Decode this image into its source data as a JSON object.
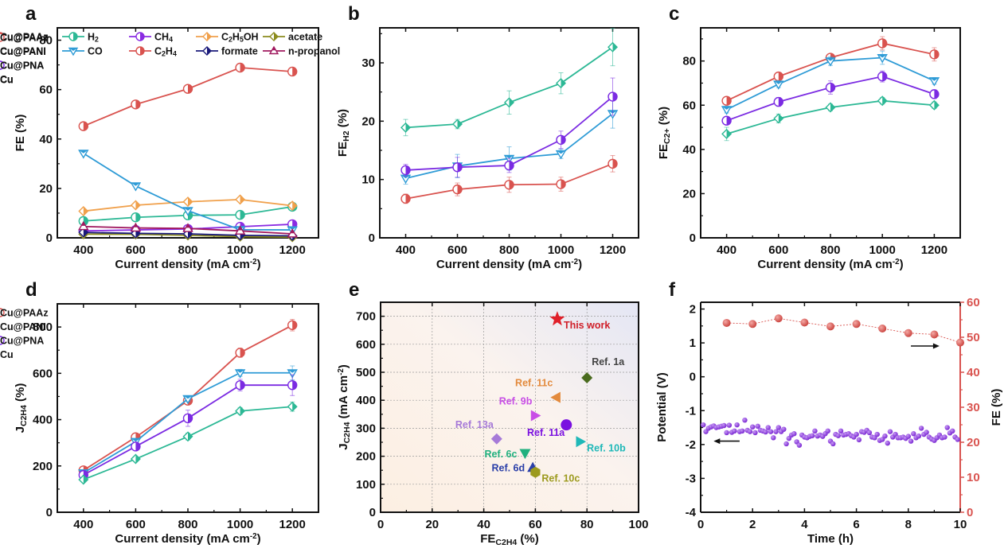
{
  "figure": {
    "panels": [
      "a",
      "b",
      "c",
      "d",
      "e",
      "f"
    ]
  },
  "chart_data": [
    {
      "panel": "a",
      "type": "line",
      "title": "",
      "xlabel": "Current density (mA cm⁻²)",
      "ylabel": "FE (%)",
      "x": [
        400,
        600,
        800,
        1000,
        1200
      ],
      "xlim": [
        300,
        1300
      ],
      "ylim": [
        0,
        85
      ],
      "xticks": [
        400,
        600,
        800,
        1000,
        1200
      ],
      "yticks": [
        0,
        20,
        40,
        60,
        80
      ],
      "legend": "top (2 rows, 4 columns)",
      "series": [
        {
          "name": "H₂",
          "color": "#2cb895",
          "values": [
            6.8,
            8.3,
            9.1,
            9.3,
            12.6
          ]
        },
        {
          "name": "CH₄",
          "color": "#8a2be2",
          "values": [
            2.8,
            3.2,
            3.6,
            4.5,
            5.5
          ]
        },
        {
          "name": "C₂H₅OH",
          "color": "#f0a04b",
          "values": [
            10.8,
            13.2,
            14.6,
            15.5,
            13.0
          ]
        },
        {
          "name": "acetate",
          "color": "#8c8c1e",
          "values": [
            1.5,
            1.4,
            1.0,
            0.5,
            0.3
          ]
        },
        {
          "name": "CO",
          "color": "#2e9bd6",
          "values": [
            34.2,
            21.0,
            11.0,
            3.3,
            3.2
          ]
        },
        {
          "name": "C₂H₄",
          "color": "#d9534f",
          "values": [
            45.2,
            54.0,
            60.3,
            68.9,
            67.3
          ]
        },
        {
          "name": "formate",
          "color": "#1a1a7a",
          "values": [
            2.2,
            1.8,
            1.6,
            1.0,
            0.8
          ]
        },
        {
          "name": "n-propanol",
          "color": "#a0195f",
          "values": [
            4.6,
            4.0,
            3.8,
            2.8,
            1.6
          ]
        }
      ]
    },
    {
      "panel": "b",
      "type": "line",
      "xlabel": "Current density (mA cm⁻²)",
      "ylabel": "FE H₂ (%)",
      "x": [
        400,
        600,
        800,
        1000,
        1200
      ],
      "xlim": [
        300,
        1300
      ],
      "ylim": [
        0,
        36
      ],
      "xticks": [
        400,
        600,
        800,
        1000,
        1200
      ],
      "yticks": [
        0,
        10,
        20,
        30
      ],
      "legend": "top-left",
      "series": [
        {
          "name": "Cu@PAAz",
          "color": "#d9534f",
          "values": [
            6.7,
            8.3,
            9.1,
            9.2,
            12.7
          ],
          "errors": [
            0.8,
            1.1,
            1.3,
            1.2,
            1.4
          ]
        },
        {
          "name": "Cu@PANI",
          "color": "#2e9bd6",
          "values": [
            10.2,
            12.3,
            13.6,
            14.4,
            21.3
          ],
          "errors": [
            1.0,
            2.0,
            2.0,
            0.8,
            2.5
          ]
        },
        {
          "name": "Cu@PNA",
          "color": "#7b2be2",
          "values": [
            11.6,
            12.1,
            12.4,
            16.8,
            24.2
          ],
          "errors": [
            1.0,
            1.7,
            1.2,
            1.5,
            3.2
          ]
        },
        {
          "name": "Cu",
          "color": "#2cb895",
          "values": [
            18.9,
            19.5,
            23.2,
            26.5,
            32.7
          ],
          "errors": [
            1.4,
            0.8,
            2.0,
            1.8,
            3.2
          ]
        }
      ]
    },
    {
      "panel": "c",
      "type": "line",
      "xlabel": "Current density (mA cm⁻²)",
      "ylabel": "FE C2+ (%)",
      "x": [
        400,
        600,
        800,
        1000,
        1200
      ],
      "xlim": [
        300,
        1300
      ],
      "ylim": [
        0,
        95
      ],
      "xticks": [
        400,
        600,
        800,
        1000,
        1200
      ],
      "yticks": [
        0,
        20,
        40,
        60,
        80
      ],
      "legend": "top-left",
      "series": [
        {
          "name": "Cu@PAAz",
          "color": "#d9534f",
          "values": [
            62,
            73,
            81.5,
            88,
            83
          ],
          "errors": [
            1.5,
            1.5,
            1.5,
            3,
            3
          ]
        },
        {
          "name": "Cu@PANI",
          "color": "#2e9bd6",
          "values": [
            58,
            69.5,
            80,
            81.5,
            71
          ],
          "errors": [
            1.5,
            1.5,
            2,
            3,
            1.5
          ]
        },
        {
          "name": "Cu@PNA",
          "color": "#7b2be2",
          "values": [
            53,
            61.5,
            68,
            73,
            65
          ],
          "errors": [
            1.5,
            2,
            3,
            2.5,
            2
          ]
        },
        {
          "name": "Cu",
          "color": "#2cb895",
          "values": [
            47,
            54,
            59,
            62,
            60
          ],
          "errors": [
            3,
            2,
            1.5,
            1.5,
            1.5
          ]
        }
      ]
    },
    {
      "panel": "d",
      "type": "line",
      "xlabel": "Current density (mA cm⁻²)",
      "ylabel": "J C₂H₄ (%)",
      "x": [
        400,
        600,
        800,
        1000,
        1200
      ],
      "xlim": [
        300,
        1300
      ],
      "ylim": [
        0,
        900
      ],
      "xticks": [
        400,
        600,
        800,
        1000,
        1200
      ],
      "yticks": [
        0,
        200,
        400,
        600,
        800
      ],
      "legend": "top-left",
      "series": [
        {
          "name": "Cu@PAAz",
          "color": "#d9534f",
          "values": [
            181,
            324,
            482,
            689,
            808
          ],
          "errors": [
            10,
            12,
            15,
            20,
            25
          ]
        },
        {
          "name": "Cu@PANI",
          "color": "#2e9bd6",
          "values": [
            170,
            305,
            490,
            602,
            602
          ],
          "errors": [
            10,
            12,
            12,
            15,
            30
          ]
        },
        {
          "name": "Cu@PNA",
          "color": "#7b2be2",
          "values": [
            161,
            284,
            406,
            549,
            549
          ],
          "errors": [
            10,
            15,
            35,
            25,
            45
          ]
        },
        {
          "name": "Cu",
          "color": "#2cb895",
          "values": [
            141,
            230,
            327,
            437,
            456
          ],
          "errors": [
            8,
            10,
            15,
            15,
            20
          ]
        }
      ]
    },
    {
      "panel": "e",
      "type": "scatter",
      "xlabel": "FE C₂H₄ (%)",
      "ylabel": "J C₂H₄ (mA cm⁻²)",
      "xlim": [
        0,
        100
      ],
      "ylim": [
        0,
        750
      ],
      "xticks": [
        0,
        20,
        40,
        60,
        80,
        100
      ],
      "yticks": [
        0,
        100,
        200,
        300,
        400,
        500,
        600,
        700
      ],
      "grid": true,
      "points": [
        {
          "label": "This work",
          "x": 68.5,
          "y": 690,
          "marker": "star",
          "color": "#e0202a",
          "label_pos": "below-right"
        },
        {
          "label": "Ref. 1a",
          "x": 80,
          "y": 480,
          "marker": "diamond",
          "color": "#4a6b1e",
          "label_pos": "above-right"
        },
        {
          "label": "Ref. 11c",
          "x": 68,
          "y": 410,
          "marker": "triangle-left",
          "color": "#e38a3c",
          "label_pos": "above-left"
        },
        {
          "label": "Ref. 9b",
          "x": 60,
          "y": 345,
          "marker": "triangle-right",
          "color": "#c84ee6",
          "label_pos": "above-left"
        },
        {
          "label": "Ref. 11a",
          "x": 72,
          "y": 312,
          "marker": "circle",
          "color": "#7a10e0",
          "label_pos": "below-left"
        },
        {
          "label": "Ref. 13a",
          "x": 45,
          "y": 262,
          "marker": "diamond",
          "color": "#a67ad8",
          "label_pos": "above-left"
        },
        {
          "label": "Ref. 10b",
          "x": 77.5,
          "y": 252,
          "marker": "triangle-right",
          "color": "#1fb8b8",
          "label_pos": "below-right"
        },
        {
          "label": "Ref. 6c",
          "x": 56,
          "y": 210,
          "marker": "triangle-down",
          "color": "#20b07e",
          "label_pos": "left"
        },
        {
          "label": "Ref. 6d",
          "x": 59,
          "y": 160,
          "marker": "triangle-up",
          "color": "#2a3fa8",
          "label_pos": "left"
        },
        {
          "label": "Ref. 10c",
          "x": 60,
          "y": 143,
          "marker": "hexagon",
          "color": "#9c9a1e",
          "label_pos": "below-right"
        }
      ]
    },
    {
      "panel": "f",
      "type": "scatter",
      "xlabel": "Time (h)",
      "ylabel": "Potential (V)",
      "ylabel_right": "FE (%)",
      "xlim": [
        0,
        10
      ],
      "ylim": [
        -4,
        2.2
      ],
      "ylim_right": [
        0,
        60
      ],
      "xticks": [
        0,
        2,
        4,
        6,
        8,
        10
      ],
      "yticks": [
        -4,
        -3,
        -2,
        -1,
        0,
        1,
        2
      ],
      "yticks_right": [
        0,
        10,
        20,
        30,
        40,
        50,
        60
      ],
      "series": [
        {
          "name": "FE",
          "axis": "right",
          "color": "#d9534f",
          "x": [
            1,
            2,
            3,
            4,
            5,
            6,
            7,
            8,
            9,
            10
          ],
          "values": [
            54.1,
            53.8,
            55.4,
            54.2,
            53.1,
            53.8,
            52.5,
            51.2,
            50.8,
            48.5
          ]
        },
        {
          "name": "Potential",
          "axis": "left",
          "color": "#8a2be2",
          "x": [
            0.1,
            0.2,
            0.3,
            0.4,
            0.5,
            0.6,
            0.7,
            0.8,
            0.9,
            1.0,
            1.1,
            1.2,
            1.3,
            1.4,
            1.5,
            1.6,
            1.7,
            1.8,
            1.9,
            2.0,
            2.1,
            2.2,
            2.3,
            2.4,
            2.5,
            2.6,
            2.7,
            2.8,
            2.9,
            3.0,
            3.1,
            3.2,
            3.3,
            3.4,
            3.5,
            3.6,
            3.7,
            3.8,
            3.9,
            4.0,
            4.1,
            4.2,
            4.3,
            4.4,
            4.5,
            4.6,
            4.7,
            4.8,
            4.9,
            5.0,
            5.1,
            5.2,
            5.3,
            5.4,
            5.5,
            5.6,
            5.7,
            5.8,
            5.9,
            6.0,
            6.1,
            6.2,
            6.3,
            6.4,
            6.5,
            6.6,
            6.7,
            6.8,
            6.9,
            7.0,
            7.1,
            7.2,
            7.3,
            7.4,
            7.5,
            7.6,
            7.7,
            7.8,
            7.9,
            8.0,
            8.1,
            8.2,
            8.3,
            8.4,
            8.5,
            8.6,
            8.7,
            8.8,
            8.9,
            9.0,
            9.1,
            9.2,
            9.3,
            9.4,
            9.5,
            9.6,
            9.7,
            9.8,
            9.9
          ],
          "values": [
            -1.42,
            -1.62,
            -1.52,
            -1.48,
            -1.45,
            -1.5,
            -1.48,
            -1.46,
            -1.44,
            -1.65,
            -1.43,
            -1.64,
            -1.6,
            -1.42,
            -1.62,
            -1.6,
            -1.28,
            -1.58,
            -1.62,
            -1.48,
            -1.65,
            -1.46,
            -1.58,
            -1.6,
            -1.63,
            -1.5,
            -1.62,
            -1.8,
            -1.62,
            -1.5,
            -1.62,
            -1.55,
            -1.98,
            -1.82,
            -1.72,
            -1.68,
            -1.92,
            -2.02,
            -1.72,
            -1.78,
            -1.8,
            -1.76,
            -1.74,
            -1.6,
            -1.75,
            -1.72,
            -1.76,
            -1.68,
            -1.6,
            -1.9,
            -1.98,
            -1.7,
            -1.74,
            -1.6,
            -1.72,
            -1.7,
            -1.68,
            -1.74,
            -1.78,
            -1.7,
            -1.86,
            -1.62,
            -1.64,
            -1.58,
            -1.65,
            -1.78,
            -1.8,
            -1.7,
            -1.88,
            -1.85,
            -1.75,
            -1.96,
            -1.62,
            -1.78,
            -1.7,
            -1.8,
            -1.8,
            -1.78,
            -1.82,
            -1.76,
            -1.9,
            -1.68,
            -1.8,
            -1.75,
            -1.52,
            -1.7,
            -1.64,
            -1.78,
            -1.84,
            -1.88,
            -1.8,
            -1.72,
            -1.8,
            -1.78,
            -1.5,
            -1.66,
            -1.6,
            -1.78,
            -1.85
          ]
        }
      ]
    }
  ]
}
